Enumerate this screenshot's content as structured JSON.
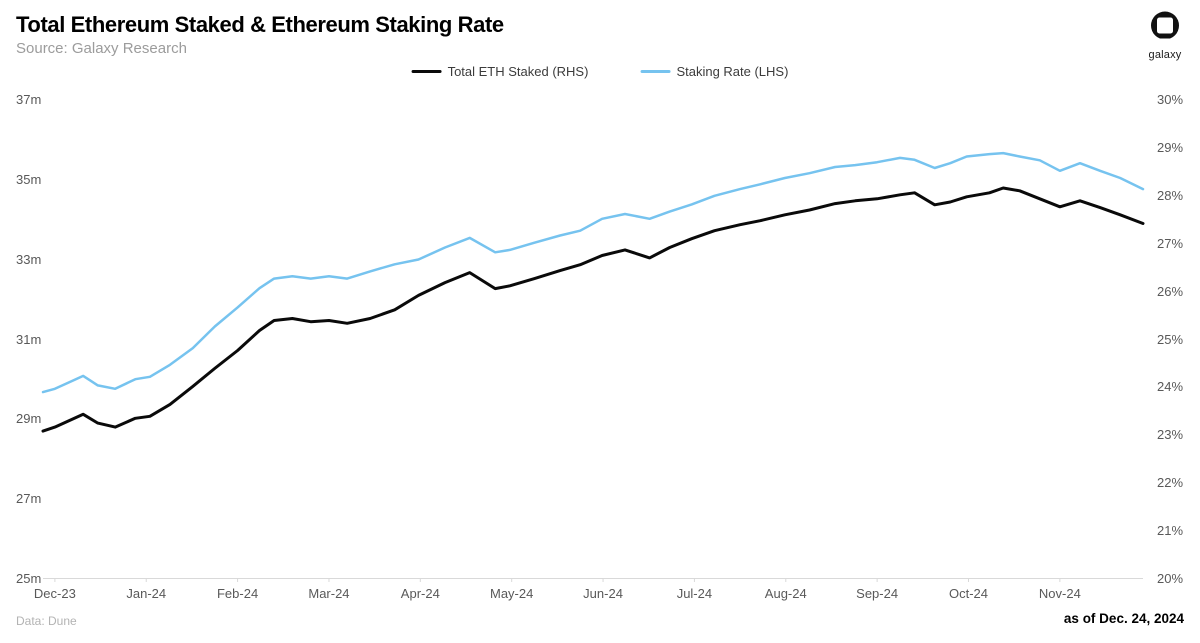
{
  "header": {
    "title": "Total Ethereum Staked & Ethereum Staking Rate",
    "source": "Source: Galaxy Research"
  },
  "branding": {
    "logo_text": "galaxy"
  },
  "legend": [
    {
      "label": "Total ETH Staked (RHS)",
      "color": "#0a0a0a"
    },
    {
      "label": "Staking Rate (LHS)",
      "color": "#76c3ef"
    }
  ],
  "footer": {
    "data_source": "Data: Dune",
    "as_of": "as of Dec. 24, 2024"
  },
  "chart_data": {
    "type": "line",
    "title": "Total Ethereum Staked & Ethereum Staking Rate",
    "grid": false,
    "legend_position": "top-center",
    "axis_color": "#d9d9d9",
    "tick_label_color": "#595959",
    "x_unit": "months (0 = Dec-2023 tick, fractional = weekly samples)",
    "xlim": [
      -0.13,
      11.91
    ],
    "x_tick_positions": [
      0,
      1,
      2,
      3,
      4,
      5,
      6,
      7,
      8,
      9,
      10,
      11
    ],
    "x_tick_labels": [
      "Dec-23",
      "Jan-24",
      "Feb-24",
      "Mar-24",
      "Apr-24",
      "May-24",
      "Jun-24",
      "Jul-24",
      "Aug-24",
      "Sep-24",
      "Oct-24",
      "Nov-24"
    ],
    "left_axis": {
      "unit": "million ETH",
      "lim": [
        25,
        37
      ],
      "tick_values": [
        37,
        35,
        33,
        31,
        29,
        27,
        25
      ],
      "tick_labels": [
        "37m",
        "35m",
        "33m",
        "31m",
        "29m",
        "27m",
        "25m"
      ]
    },
    "right_axis": {
      "unit": "percent",
      "lim": [
        20,
        30
      ],
      "tick_values": [
        30,
        29,
        28,
        27,
        26,
        25,
        24,
        23,
        22,
        21,
        20
      ],
      "tick_labels": [
        "30%",
        "29%",
        "28%",
        "27%",
        "26%",
        "25%",
        "24%",
        "23%",
        "22%",
        "21%",
        "20%"
      ]
    },
    "series": [
      {
        "name": "Total ETH Staked (RHS)",
        "data_name": "eth-staked-line",
        "axis": "left",
        "unit": "million ETH",
        "color": "#0a0a0a",
        "width": 3,
        "points": [
          [
            -0.13,
            28.68
          ],
          [
            0.0,
            28.78
          ],
          [
            0.31,
            29.1
          ],
          [
            0.47,
            28.88
          ],
          [
            0.66,
            28.78
          ],
          [
            0.88,
            29.0
          ],
          [
            1.04,
            29.05
          ],
          [
            1.26,
            29.35
          ],
          [
            1.51,
            29.8
          ],
          [
            1.75,
            30.25
          ],
          [
            2.0,
            30.7
          ],
          [
            2.24,
            31.2
          ],
          [
            2.4,
            31.45
          ],
          [
            2.6,
            31.5
          ],
          [
            2.8,
            31.42
          ],
          [
            3.0,
            31.45
          ],
          [
            3.2,
            31.38
          ],
          [
            3.45,
            31.5
          ],
          [
            3.72,
            31.72
          ],
          [
            3.98,
            32.08
          ],
          [
            4.27,
            32.4
          ],
          [
            4.54,
            32.65
          ],
          [
            4.82,
            32.25
          ],
          [
            4.98,
            32.32
          ],
          [
            5.25,
            32.5
          ],
          [
            5.53,
            32.7
          ],
          [
            5.75,
            32.85
          ],
          [
            5.99,
            33.08
          ],
          [
            6.24,
            33.22
          ],
          [
            6.51,
            33.02
          ],
          [
            6.73,
            33.28
          ],
          [
            6.97,
            33.5
          ],
          [
            7.22,
            33.7
          ],
          [
            7.5,
            33.85
          ],
          [
            7.72,
            33.95
          ],
          [
            7.99,
            34.1
          ],
          [
            8.26,
            34.22
          ],
          [
            8.54,
            34.38
          ],
          [
            8.76,
            34.45
          ],
          [
            9.0,
            34.5
          ],
          [
            9.25,
            34.6
          ],
          [
            9.41,
            34.65
          ],
          [
            9.63,
            34.35
          ],
          [
            9.8,
            34.42
          ],
          [
            9.98,
            34.55
          ],
          [
            10.23,
            34.65
          ],
          [
            10.38,
            34.77
          ],
          [
            10.56,
            34.7
          ],
          [
            10.78,
            34.5
          ],
          [
            11.0,
            34.3
          ],
          [
            11.22,
            34.45
          ],
          [
            11.44,
            34.28
          ],
          [
            11.66,
            34.1
          ],
          [
            11.91,
            33.88
          ]
        ]
      },
      {
        "name": "Staking Rate (LHS)",
        "data_name": "staking-rate-line",
        "axis": "right",
        "unit": "percent",
        "color": "#76c3ef",
        "width": 2.5,
        "points": [
          [
            -0.13,
            23.88
          ],
          [
            0.0,
            23.95
          ],
          [
            0.31,
            24.22
          ],
          [
            0.47,
            24.02
          ],
          [
            0.66,
            23.95
          ],
          [
            0.88,
            24.15
          ],
          [
            1.04,
            24.2
          ],
          [
            1.26,
            24.45
          ],
          [
            1.51,
            24.8
          ],
          [
            1.75,
            25.25
          ],
          [
            2.0,
            25.65
          ],
          [
            2.24,
            26.05
          ],
          [
            2.4,
            26.25
          ],
          [
            2.6,
            26.3
          ],
          [
            2.8,
            26.25
          ],
          [
            3.0,
            26.3
          ],
          [
            3.2,
            26.25
          ],
          [
            3.45,
            26.4
          ],
          [
            3.72,
            26.55
          ],
          [
            3.98,
            26.65
          ],
          [
            4.27,
            26.9
          ],
          [
            4.54,
            27.1
          ],
          [
            4.82,
            26.8
          ],
          [
            4.98,
            26.85
          ],
          [
            5.25,
            27.0
          ],
          [
            5.53,
            27.15
          ],
          [
            5.75,
            27.25
          ],
          [
            5.99,
            27.5
          ],
          [
            6.24,
            27.6
          ],
          [
            6.51,
            27.5
          ],
          [
            6.73,
            27.65
          ],
          [
            6.97,
            27.8
          ],
          [
            7.22,
            27.98
          ],
          [
            7.5,
            28.12
          ],
          [
            7.72,
            28.22
          ],
          [
            7.99,
            28.35
          ],
          [
            8.26,
            28.45
          ],
          [
            8.54,
            28.58
          ],
          [
            8.76,
            28.62
          ],
          [
            9.0,
            28.68
          ],
          [
            9.25,
            28.77
          ],
          [
            9.41,
            28.73
          ],
          [
            9.63,
            28.56
          ],
          [
            9.8,
            28.66
          ],
          [
            9.98,
            28.8
          ],
          [
            10.23,
            28.85
          ],
          [
            10.38,
            28.87
          ],
          [
            10.56,
            28.8
          ],
          [
            10.78,
            28.72
          ],
          [
            11.0,
            28.5
          ],
          [
            11.22,
            28.66
          ],
          [
            11.44,
            28.5
          ],
          [
            11.66,
            28.35
          ],
          [
            11.91,
            28.12
          ]
        ]
      }
    ]
  }
}
